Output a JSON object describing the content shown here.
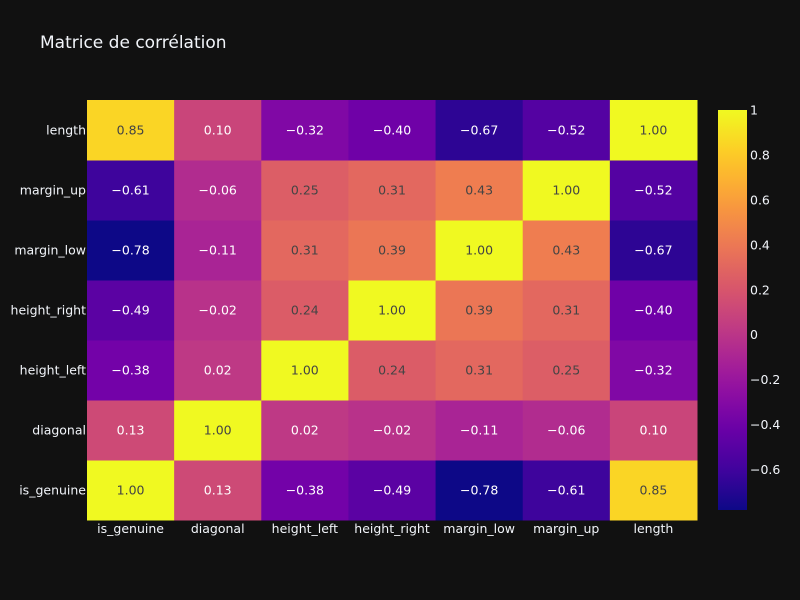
{
  "chart_data": {
    "type": "heatmap",
    "title": "Matrice de corrélation",
    "x_categories": [
      "is_genuine",
      "diagonal",
      "height_left",
      "height_right",
      "margin_low",
      "margin_up",
      "length"
    ],
    "y_categories": [
      "is_genuine",
      "diagonal",
      "height_left",
      "height_right",
      "margin_low",
      "margin_up",
      "length"
    ],
    "z": [
      [
        1.0,
        0.13,
        -0.38,
        -0.49,
        -0.78,
        -0.61,
        0.85
      ],
      [
        0.13,
        1.0,
        0.02,
        -0.02,
        -0.11,
        -0.06,
        0.1
      ],
      [
        -0.38,
        0.02,
        1.0,
        0.24,
        0.31,
        0.25,
        -0.32
      ],
      [
        -0.49,
        -0.02,
        0.24,
        1.0,
        0.39,
        0.31,
        -0.4
      ],
      [
        -0.78,
        -0.11,
        0.31,
        0.39,
        1.0,
        0.43,
        -0.67
      ],
      [
        -0.61,
        -0.06,
        0.25,
        0.31,
        0.43,
        1.0,
        -0.52
      ],
      [
        0.85,
        0.1,
        -0.32,
        -0.4,
        -0.67,
        -0.52,
        1.0
      ]
    ],
    "zmin": -0.78,
    "zmax": 1.0,
    "colorscale": "plasma",
    "colorbar_ticks": [
      1,
      0.8,
      0.6,
      0.4,
      0.2,
      0,
      -0.2,
      -0.4,
      -0.6
    ],
    "colorbar_tick_labels": [
      "1",
      "0.8",
      "0.6",
      "0.4",
      "0.2",
      "0",
      "−0.2",
      "−0.4",
      "−0.6"
    ],
    "background": "#111111",
    "text_color": "#f2f5fa"
  }
}
